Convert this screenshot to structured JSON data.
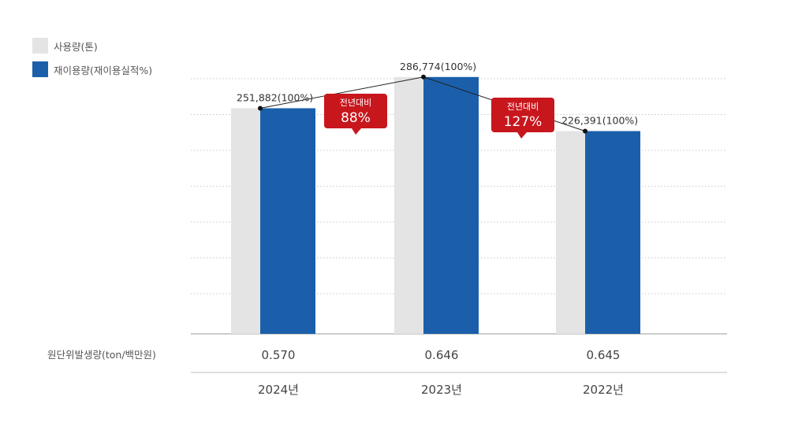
{
  "legend": {
    "usage_label": "사용량(톤)",
    "reuse_label": "재이용량(재이용실적%)",
    "usage_color": "#e4e4e4",
    "reuse_color": "#1b5fab"
  },
  "chart_data": {
    "type": "bar",
    "categories": [
      "2024년",
      "2023년",
      "2022년"
    ],
    "series": [
      {
        "name": "사용량(톤)",
        "values": [
          251882,
          286774,
          226391
        ]
      },
      {
        "name": "재이용량(재이용실적%)",
        "values": [
          251882,
          286774,
          226391
        ]
      }
    ],
    "bar_labels": [
      "251,882(100%)",
      "286,774(100%)",
      "226,391(100%)"
    ],
    "callouts": [
      {
        "title": "전년대비",
        "value": "88%"
      },
      {
        "title": "전년대비",
        "value": "127%"
      }
    ],
    "callout_color": "#c8161d",
    "ylim": [
      0,
      280000
    ],
    "grid": true,
    "legend_position": "top-left"
  },
  "intensity": {
    "label": "원단위발생량(ton/백만원)",
    "values": [
      "0.570",
      "0.646",
      "0.645"
    ]
  }
}
